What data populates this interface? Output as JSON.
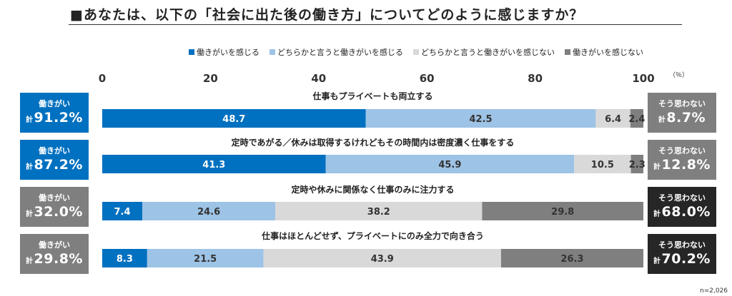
{
  "title": "■あなたは、以下の「社会に出た後の働き方」についてどのように感じますか？",
  "unit": "（％）",
  "n_note": "n=2,026",
  "colors": {
    "dark_blue": "#0070c0",
    "light_blue": "#9dc3e6",
    "light_gray": "#d9d9d9",
    "dark_gray": "#7f7f7f",
    "black": "#262626"
  },
  "chart_data": {
    "type": "bar",
    "orientation": "horizontal",
    "stacked": true,
    "xlim": [
      0,
      100
    ],
    "x_ticks": [
      "0",
      "20",
      "40",
      "60",
      "80",
      "100"
    ],
    "legend_position": "top",
    "categories": [
      "仕事もプライベートも両立する",
      "定時であがる／休みは取得するけれどもその時間内は密度濃く仕事をする",
      "定時や休みに関係なく仕事のみに注力する",
      "仕事はほとんどせず、プライベートにのみ全力で向き合う"
    ],
    "series": [
      {
        "name": "働きがいを感じる",
        "values": [
          48.7,
          41.3,
          7.4,
          8.3
        ]
      },
      {
        "name": "どちらかと言うと働きがいを感じる",
        "values": [
          42.5,
          45.9,
          24.6,
          21.5
        ]
      },
      {
        "name": "どちらかと言うと働きがいを感じない",
        "values": [
          6.4,
          10.5,
          38.2,
          43.9
        ]
      },
      {
        "name": "働きがいを感じない",
        "values": [
          2.4,
          2.3,
          29.8,
          26.3
        ]
      }
    ],
    "data_labels": [
      [
        "48.7",
        "42.5",
        "6.4",
        "2.4"
      ],
      [
        "41.3",
        "45.9",
        "10.5",
        "2.3"
      ],
      [
        "7.4",
        "24.6",
        "38.2",
        "29.8"
      ],
      [
        "8.3",
        "21.5",
        "43.9",
        "26.3"
      ]
    ],
    "left_totals": {
      "label": "働きがい",
      "prefix": "計",
      "values": [
        "91.2%",
        "87.2%",
        "32.0%",
        "29.8%"
      ],
      "styles": [
        "blue",
        "blue",
        "gray",
        "gray"
      ]
    },
    "right_totals": {
      "label": "そう思わない",
      "prefix": "計",
      "values": [
        "8.7%",
        "12.8%",
        "68.0%",
        "70.2%"
      ],
      "styles": [
        "gray",
        "gray",
        "black",
        "black"
      ]
    }
  }
}
